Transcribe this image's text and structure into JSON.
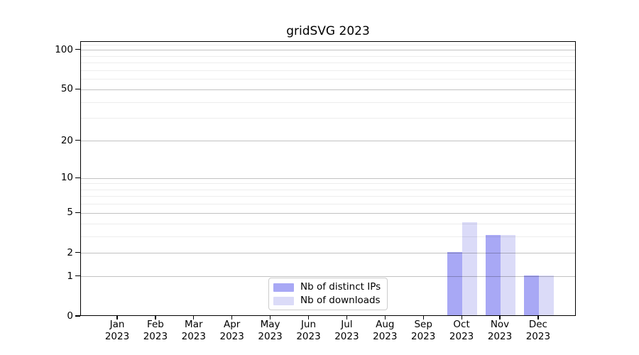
{
  "chart_data": {
    "type": "bar",
    "title": "gridSVG 2023",
    "categories": [
      "Jan 2023",
      "Feb 2023",
      "Mar 2023",
      "Apr 2023",
      "May 2023",
      "Jun 2023",
      "Jul 2023",
      "Aug 2023",
      "Sep 2023",
      "Oct 2023",
      "Nov 2023",
      "Dec 2023"
    ],
    "series": [
      {
        "name": "Nb of distinct IPs",
        "color": "#a8a8f5",
        "values": [
          0,
          0,
          0,
          0,
          0,
          0,
          0,
          0,
          0,
          2,
          3,
          1
        ]
      },
      {
        "name": "Nb of downloads",
        "color": "#dbdbf8",
        "values": [
          0,
          0,
          0,
          0,
          0,
          0,
          0,
          0,
          0,
          4,
          3,
          1
        ]
      }
    ],
    "yscale": "log1p",
    "ylim": [
      0,
      117
    ],
    "y_ticks": [
      0,
      1,
      2,
      5,
      10,
      20,
      50,
      100
    ],
    "y_minor_gridlines": [
      3,
      4,
      6,
      7,
      8,
      9,
      30,
      40,
      60,
      70,
      80,
      90,
      110
    ],
    "xlabel": "",
    "ylabel": "",
    "grid": true,
    "legend_position": "lower center"
  },
  "colors": {
    "background": "#ffffff",
    "axis": "#000000",
    "grid_major": "rgba(0,0,0,0.24)",
    "grid_minor": "rgba(0,0,0,0.07)",
    "legend_border": "#cccccc",
    "bar_distinct_ips": "#a8a8f5",
    "bar_downloads": "#dbdbf8"
  }
}
